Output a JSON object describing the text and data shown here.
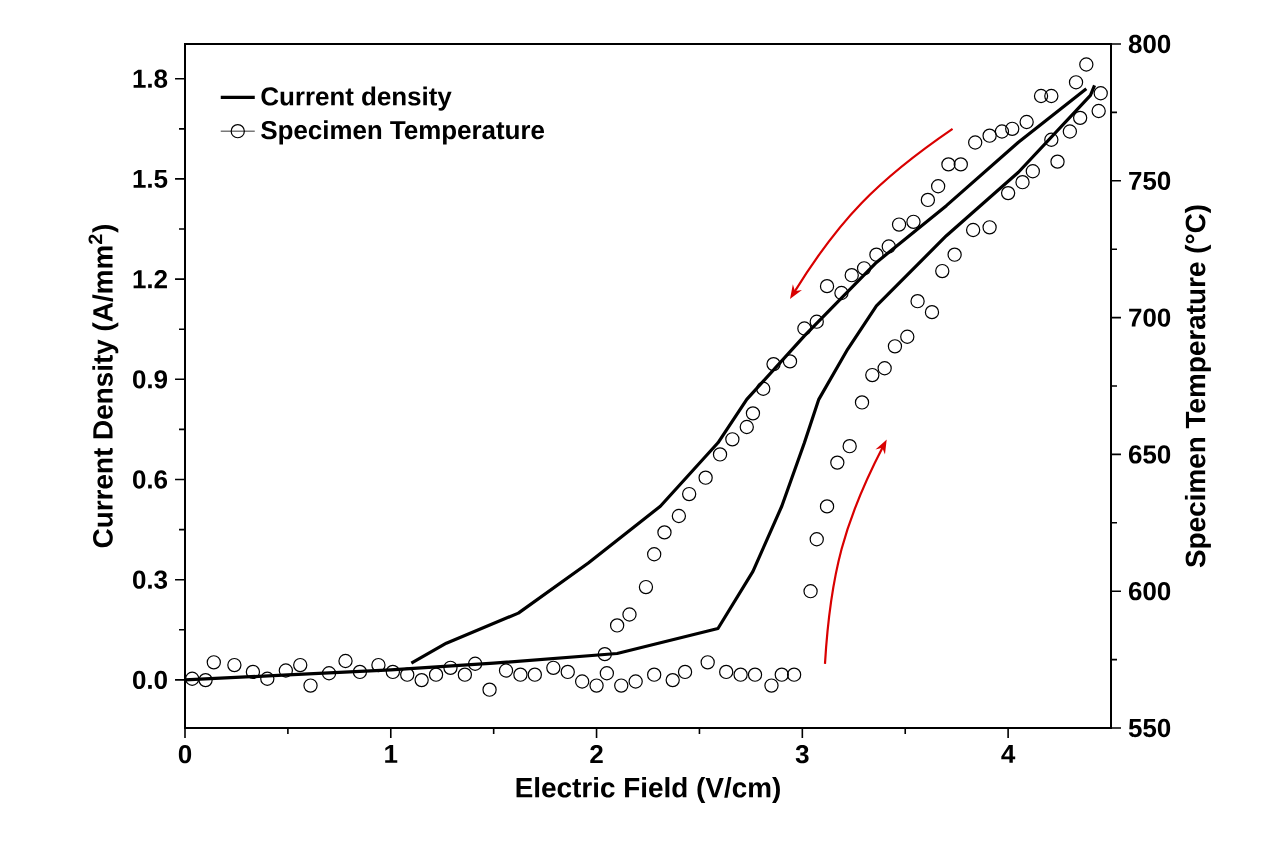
{
  "chart_data": {
    "type": "line",
    "xlabel": "Electric Field (V/cm)",
    "ylabel": "Current Density (A/mm$^{2}$)",
    "y2label": "Specimen Temperature (°C)",
    "xlim": [
      0,
      4.5
    ],
    "xticks": [
      0,
      1,
      2,
      3,
      4
    ],
    "ylim": [
      -0.144,
      1.904
    ],
    "yticks": [
      {
        "value": 0,
        "label": "0.0"
      },
      {
        "value": 0.3,
        "label": "0.3"
      },
      {
        "value": 0.6,
        "label": "0.6"
      },
      {
        "value": 0.9,
        "label": "0.9"
      },
      {
        "value": 1.2,
        "label": "1.2"
      },
      {
        "value": 1.5,
        "label": "1.5"
      },
      {
        "value": 1.8,
        "label": "1.8"
      }
    ],
    "y2lim": [
      550,
      800
    ],
    "y2ticks": [
      550,
      600,
      650,
      700,
      750,
      800
    ],
    "legend": "top left",
    "series": [
      {
        "name": "Current density",
        "color": "#000000",
        "marker": "none",
        "line_style": "solid",
        "x": [
          0,
          0.5,
          1.0,
          1.5,
          2.1,
          2.59,
          2.76,
          2.9,
          3.01,
          3.08,
          3.22,
          3.36,
          3.7,
          4.05,
          4.4,
          4.42
        ],
        "values": [
          0.0,
          0.015,
          0.03,
          0.05,
          0.079,
          0.154,
          0.325,
          0.52,
          0.71,
          0.84,
          0.99,
          1.12,
          1.33,
          1.52,
          1.75,
          1.78
        ]
      },
      {
        "color": "#000000",
        "marker": "none",
        "line_style": "solid",
        "x": [
          1.1,
          1.27,
          1.62,
          1.96,
          2.31,
          2.59,
          2.73,
          3.01,
          3.36,
          3.7,
          4.05,
          4.38
        ],
        "values": [
          0.05,
          0.11,
          0.2,
          0.35,
          0.52,
          0.71,
          0.84,
          1.03,
          1.25,
          1.42,
          1.61,
          1.77
        ]
      },
      {
        "name": "Specimen Temperature",
        "type": "scatter",
        "axis": "y2",
        "color": "#000000",
        "marker": "circle",
        "x": [
          0.035,
          0.1,
          0.14,
          0.24,
          0.33,
          0.4,
          0.49,
          0.56,
          0.61,
          0.7,
          0.78,
          0.85,
          0.94,
          1.01,
          1.08,
          1.15,
          1.22,
          1.29,
          1.36,
          1.41,
          1.48,
          1.56,
          1.63,
          1.7,
          1.79,
          1.86,
          1.93,
          2.0,
          2.05,
          2.12,
          2.19,
          2.28,
          2.37,
          2.43,
          2.54,
          2.63,
          2.7,
          2.77,
          2.85,
          2.9,
          2.96,
          3.04,
          3.07,
          3.12,
          3.17,
          3.23,
          3.29,
          3.34,
          3.4,
          3.45,
          3.51,
          3.56,
          3.63,
          3.68,
          3.74,
          3.83,
          3.91,
          4.0,
          4.07,
          4.12,
          4.24,
          4.21,
          4.3,
          4.35,
          4.44,
          4.45,
          4.38,
          4.33,
          4.21,
          4.16,
          4.09,
          4.02,
          3.97,
          3.91,
          3.84,
          3.77,
          3.71,
          3.66,
          3.61,
          3.54,
          3.47,
          3.42,
          3.36,
          3.3,
          3.24,
          3.19,
          3.12,
          3.07,
          3.01,
          2.94,
          2.86,
          2.81,
          2.76,
          2.73,
          2.66,
          2.6,
          2.53,
          2.45,
          2.4,
          2.33,
          2.28,
          2.24,
          2.16,
          2.1,
          2.04
        ],
        "values": [
          568,
          567.5,
          574,
          573,
          570.5,
          568,
          571,
          573,
          565.5,
          570,
          574.5,
          570.5,
          573,
          570.5,
          569.5,
          567.5,
          569.5,
          572,
          569.5,
          573.5,
          564,
          571,
          569.5,
          569.5,
          572,
          570.5,
          567,
          565.5,
          570,
          565.5,
          567,
          569.5,
          567.5,
          570.5,
          574,
          570.5,
          569.5,
          569.5,
          565.5,
          569.5,
          569.5,
          600,
          619,
          631,
          647,
          653,
          669,
          679,
          681.5,
          689.5,
          693,
          706,
          702,
          717,
          723,
          732,
          733,
          745.5,
          749.5,
          753.5,
          757,
          765,
          768,
          773,
          775.5,
          782,
          792.5,
          786,
          781,
          781,
          771.5,
          769,
          768,
          766.5,
          764,
          756,
          756,
          748,
          743,
          735,
          734,
          726,
          723,
          718,
          715.5,
          709,
          711.5,
          698.5,
          696,
          684,
          683,
          674,
          665,
          660,
          655.5,
          650,
          641.5,
          635.5,
          627.5,
          621.5,
          613.5,
          601.5,
          591.5,
          587.5,
          577
        ]
      }
    ]
  }
}
